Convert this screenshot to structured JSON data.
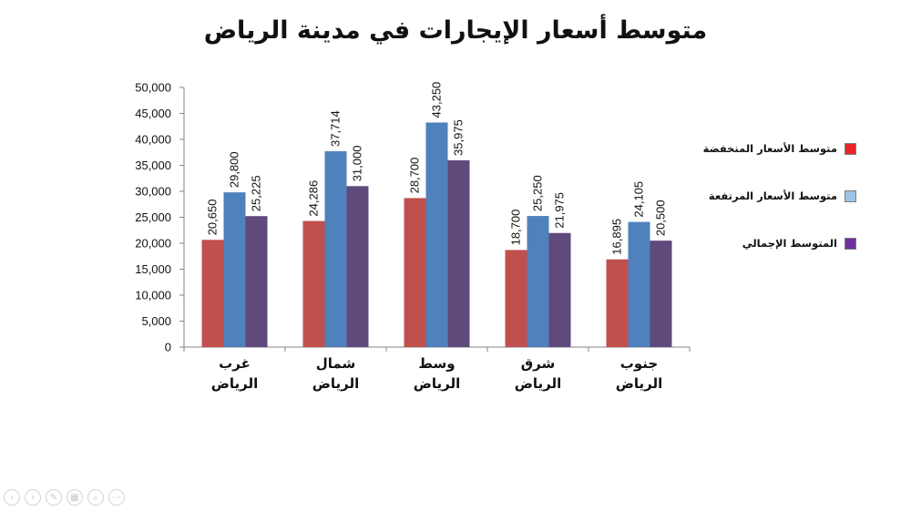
{
  "slide": {
    "title": "متوسط أسعار الإيجارات في مدينة الرياض"
  },
  "chart_data": {
    "type": "bar",
    "title": "متوسط أسعار الإيجارات في مدينة الرياض",
    "xlabel": "",
    "ylabel": "",
    "ylim": [
      0,
      50000
    ],
    "y_ticks": [
      "0",
      "5,000",
      "10,000",
      "15,000",
      "20,000",
      "25,000",
      "30,000",
      "35,000",
      "40,000",
      "45,000",
      "50,000"
    ],
    "y_tick_values": [
      0,
      5000,
      10000,
      15000,
      20000,
      25000,
      30000,
      35000,
      40000,
      45000,
      50000
    ],
    "categories": [
      [
        "غرب",
        "الرياض"
      ],
      [
        "شمال",
        "الرياض"
      ],
      [
        "وسط",
        "الرياض"
      ],
      [
        "شرق",
        "الرياض"
      ],
      [
        "جنوب",
        "الرياض"
      ]
    ],
    "series": [
      {
        "name": "متوسط الأسعار المنخفضة",
        "color": "#C0504D",
        "values": [
          20650,
          24286,
          28700,
          18700,
          16895
        ],
        "labels": [
          "20,650",
          "24,286",
          "28,700",
          "18,700",
          "16,895"
        ]
      },
      {
        "name": "متوسط الأسعار المرتفعة",
        "color": "#4F81BD",
        "values": [
          29800,
          37714,
          43250,
          25250,
          24105
        ],
        "labels": [
          "29,800",
          "37,714",
          "43,250",
          "25,250",
          "24,105"
        ]
      },
      {
        "name": "المتوسط الإجمالي",
        "color": "#604A7B",
        "values": [
          25225,
          31000,
          35975,
          21975,
          20500
        ],
        "labels": [
          "25,225",
          "31,000",
          "35,975",
          "21,975",
          "20,500"
        ]
      }
    ],
    "legend_colors": [
      "#E8242C",
      "#9DC3E6",
      "#7030A0"
    ],
    "legend_position": "right",
    "grid": false
  },
  "nav": {
    "icons": [
      "back-arrow-icon",
      "forward-arrow-icon",
      "pen-icon",
      "slides-icon",
      "zoom-icon",
      "more-icon"
    ],
    "glyphs": [
      "‹",
      "›",
      "✎",
      "▦",
      "⌕",
      "⋯"
    ]
  }
}
